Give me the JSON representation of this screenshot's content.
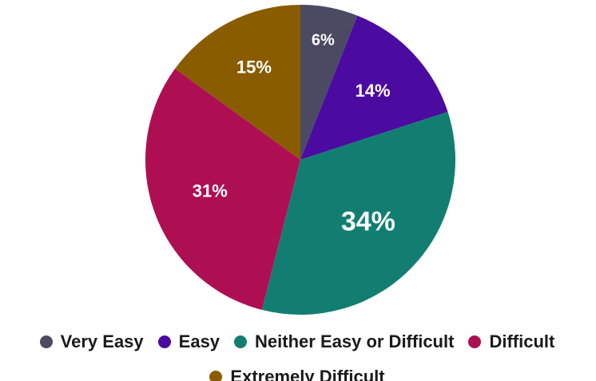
{
  "chart_data": {
    "type": "pie",
    "title": "",
    "slices": [
      {
        "name": "Very Easy",
        "value": 6,
        "label": "6%",
        "color": "#4a4a63"
      },
      {
        "name": "Easy",
        "value": 14,
        "label": "14%",
        "color": "#4b0aa0"
      },
      {
        "name": "Neither Easy or Difficult",
        "value": 34,
        "label": "34%",
        "color": "#127e72"
      },
      {
        "name": "Difficult",
        "value": 31,
        "label": "31%",
        "color": "#ae0f52"
      },
      {
        "name": "Extremely Difficult",
        "value": 15,
        "label": "15%",
        "color": "#8a5c00"
      }
    ],
    "start_angle": "12 o'clock",
    "direction": "clockwise",
    "legend_placement": "bottom"
  }
}
